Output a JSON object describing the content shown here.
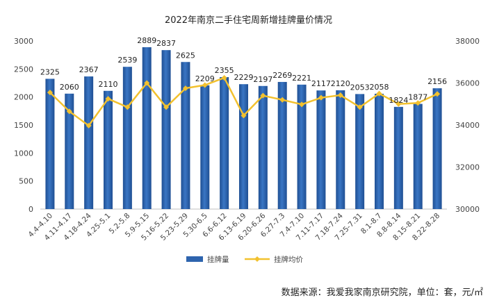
{
  "chart_data": {
    "type": "bar",
    "title": "2022年南京二手住宅周新增挂牌量价情况",
    "categories": [
      "4.4-4.10",
      "4.11-4.17",
      "4.18-4.24",
      "4.25-5.1",
      "5.2-5.8",
      "5.9-5.15",
      "5.16-5.22",
      "5.23-5.29",
      "5.30-6.5",
      "6.6-6.12",
      "6.13-6.19",
      "6.20-6.26",
      "6.27-7.3",
      "7.4-7.10",
      "7.11-7.17",
      "7.18-7.24",
      "7.25-7.31",
      "8.1-8.7",
      "8.8-8.14",
      "8.15-8.21",
      "8.22-8.28"
    ],
    "series": [
      {
        "name": "挂牌量",
        "type": "bar",
        "axis": "left",
        "color": "#2e64ae",
        "values": [
          2325,
          2060,
          2367,
          2110,
          2539,
          2889,
          2837,
          2625,
          2209,
          2355,
          2229,
          2197,
          2269,
          2221,
          2117,
          2120,
          2053,
          2058,
          1824,
          1877,
          2156
        ]
      },
      {
        "name": "挂牌均价",
        "type": "line",
        "axis": "right",
        "color": "#f2c12e",
        "values": [
          35550,
          34650,
          33970,
          35250,
          34850,
          36000,
          34850,
          35750,
          35900,
          36250,
          34450,
          35400,
          35200,
          34980,
          35300,
          35420,
          34850,
          35500,
          35000,
          35050,
          35480
        ]
      }
    ],
    "yleft": {
      "lim": [
        0,
        3000
      ],
      "ticks": [
        0,
        500,
        1000,
        1500,
        2000,
        2500,
        3000
      ]
    },
    "yright": {
      "lim": [
        30000,
        38000
      ],
      "ticks": [
        30000,
        32000,
        34000,
        36000,
        38000
      ]
    },
    "grid": false,
    "legend": "bottom",
    "source": "数据来源：我爱我家南京研究院，单位：套，元/㎡"
  }
}
